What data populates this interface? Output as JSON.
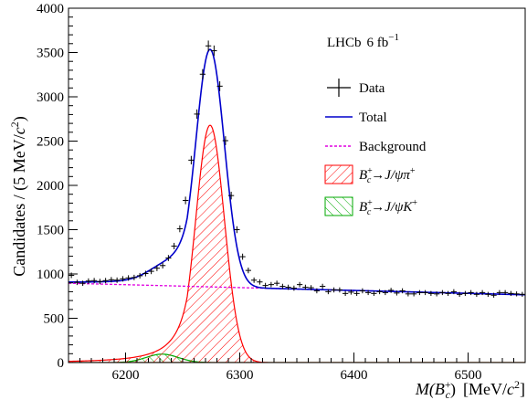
{
  "chart_data": {
    "type": "histogram_fit",
    "experiment_label": "LHCb",
    "luminosity": "6 fb",
    "luminosity_exponent": "−1",
    "ylabel_main": "Candidates / (5 MeV/",
    "ylabel_c": "c",
    "ylabel_exp": "2",
    "ylabel_close": ")",
    "xlabel_main": "M(B",
    "xlabel_sup": "+",
    "xlabel_sub": "c",
    "xlabel_close": ")",
    "xlabel_unit": "[MeV/",
    "xlabel_c": "c",
    "xlabel_exp": "2",
    "xlabel_unit_close": "]",
    "xlim": [
      6150,
      6550
    ],
    "ylim": [
      0,
      4000
    ],
    "x_ticks": [
      6200,
      6300,
      6400,
      6500
    ],
    "y_ticks": [
      0,
      500,
      1000,
      1500,
      2000,
      2500,
      3000,
      3500,
      4000
    ],
    "grid": false,
    "legend_position": "top-right",
    "legend": {
      "data": "Data",
      "total": "Total",
      "background": "Background",
      "sig_a": "B",
      "sig_sup": "+",
      "sig_sub": "c",
      "sig_arrow": "→",
      "sig_jpsi": "J/ψπ",
      "sig_pi_sup": "+",
      "bkg_k_a": "B",
      "bkg_k_sup": "+",
      "bkg_k_sub": "c",
      "bkg_k_arrow": "→",
      "bkg_k_jpsi": "J/ψK",
      "bkg_k_sup2": "+"
    },
    "colors": {
      "total": "#0000cc",
      "background": "#e000e0",
      "signal": "#ff0000",
      "bjk": "#00aa00",
      "data": "#000000"
    },
    "model": {
      "bkg_intercept_at_6150": 895,
      "bkg_slope_per_mev": -0.325,
      "signal_mean": 6274,
      "signal_sigma_core": 12.5,
      "signal_peak": 2680,
      "bjk_mean": 6232,
      "bjk_sigma": 14,
      "bjk_peak": 95
    },
    "data_points": {
      "x": [
        6150,
        6155,
        6160,
        6165,
        6170,
        6175,
        6180,
        6185,
        6190,
        6195,
        6200,
        6205,
        6210,
        6215,
        6220,
        6225,
        6230,
        6235,
        6240,
        6245,
        6250,
        6255,
        6260,
        6265,
        6270,
        6275,
        6280,
        6285,
        6290,
        6295,
        6300,
        6305,
        6310,
        6315,
        6320,
        6325,
        6330,
        6335,
        6340,
        6345,
        6350,
        6355,
        6360,
        6365,
        6370,
        6375,
        6380,
        6385,
        6390,
        6395,
        6400,
        6405,
        6410,
        6415,
        6420,
        6425,
        6430,
        6435,
        6440,
        6445,
        6450,
        6455,
        6460,
        6465,
        6470,
        6475,
        6480,
        6485,
        6490,
        6495,
        6500,
        6505,
        6510,
        6515,
        6520,
        6525,
        6530,
        6535,
        6540,
        6545
      ],
      "y": [
        985,
        905,
        895,
        920,
        925,
        915,
        925,
        935,
        930,
        945,
        955,
        960,
        980,
        1005,
        1030,
        1065,
        1095,
        1180,
        1315,
        1510,
        1830,
        2285,
        2805,
        3255,
        3575,
        3520,
        3120,
        2505,
        1885,
        1500,
        1195,
        1040,
        930,
        910,
        870,
        880,
        895,
        860,
        850,
        840,
        880,
        850,
        845,
        810,
        860,
        800,
        820,
        820,
        780,
        795,
        780,
        810,
        790,
        780,
        800,
        790,
        815,
        785,
        810,
        775,
        775,
        790,
        790,
        780,
        775,
        790,
        780,
        800,
        770,
        780,
        790,
        770,
        790,
        770,
        760,
        790,
        790,
        780,
        775,
        770
      ]
    }
  }
}
